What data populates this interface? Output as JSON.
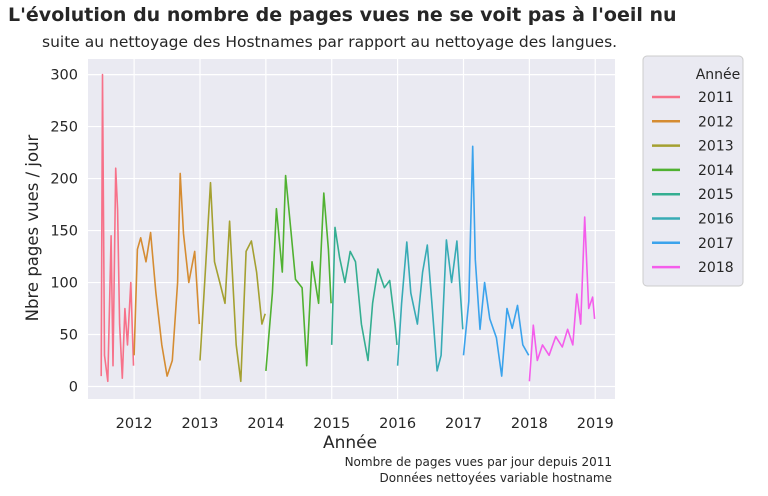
{
  "chart_data": {
    "type": "line",
    "title": "L'évolution du nombre de pages vues ne se voit pas à l'oeil nu",
    "subtitle": "suite au nettoyage des Hostnames par rapport au nettoyage des langues.",
    "xlabel": "Année",
    "ylabel": "Nbre pages vues / jour",
    "xlim": [
      2011.3,
      2019.3
    ],
    "ylim": [
      -12,
      315
    ],
    "x_ticks": [
      "2012",
      "2013",
      "2014",
      "2015",
      "2016",
      "2017",
      "2018",
      "2019"
    ],
    "x_tick_values": [
      2012,
      2013,
      2014,
      2015,
      2016,
      2017,
      2018,
      2019
    ],
    "y_ticks": [
      0,
      50,
      100,
      150,
      200,
      250,
      300
    ],
    "grid": true,
    "legend": {
      "title": "Année",
      "placement": "outside-right"
    },
    "series": [
      {
        "name": "2011",
        "color": "#f77189",
        "x": [
          2011.5,
          2011.52,
          2011.55,
          2011.6,
          2011.65,
          2011.68,
          2011.72,
          2011.75,
          2011.78,
          2011.82,
          2011.86,
          2011.9,
          2011.95,
          2011.99
        ],
        "y": [
          10,
          300,
          30,
          5,
          145,
          20,
          210,
          170,
          60,
          8,
          75,
          40,
          100,
          20
        ]
      },
      {
        "name": "2012",
        "color": "#d58c32",
        "x": [
          2012.0,
          2012.05,
          2012.1,
          2012.18,
          2012.25,
          2012.33,
          2012.42,
          2012.5,
          2012.58,
          2012.66,
          2012.7,
          2012.75,
          2012.83,
          2012.92,
          2012.99
        ],
        "y": [
          30,
          132,
          143,
          120,
          148,
          90,
          40,
          10,
          25,
          100,
          205,
          147,
          100,
          130,
          60
        ]
      },
      {
        "name": "2013",
        "color": "#a4a031",
        "x": [
          2013.0,
          2013.08,
          2013.16,
          2013.22,
          2013.3,
          2013.38,
          2013.45,
          2013.55,
          2013.62,
          2013.7,
          2013.78,
          2013.86,
          2013.94,
          2013.99
        ],
        "y": [
          25,
          110,
          196,
          120,
          100,
          80,
          159,
          40,
          5,
          130,
          140,
          110,
          60,
          70
        ]
      },
      {
        "name": "2014",
        "color": "#50b131",
        "x": [
          2014.0,
          2014.1,
          2014.16,
          2014.25,
          2014.3,
          2014.38,
          2014.45,
          2014.55,
          2014.62,
          2014.7,
          2014.8,
          2014.88,
          2014.95,
          2014.99
        ],
        "y": [
          15,
          90,
          171,
          110,
          203,
          150,
          103,
          95,
          20,
          120,
          80,
          186,
          132,
          80
        ]
      },
      {
        "name": "2015",
        "color": "#34ae91",
        "x": [
          2015.0,
          2015.05,
          2015.12,
          2015.2,
          2015.28,
          2015.36,
          2015.45,
          2015.55,
          2015.62,
          2015.7,
          2015.8,
          2015.88,
          2015.96,
          2015.99
        ],
        "y": [
          40,
          153,
          124,
          100,
          130,
          120,
          60,
          25,
          80,
          113,
          95,
          102,
          60,
          40
        ]
      },
      {
        "name": "2016",
        "color": "#37abb5",
        "x": [
          2016.0,
          2016.06,
          2016.14,
          2016.2,
          2016.3,
          2016.38,
          2016.45,
          2016.52,
          2016.6,
          2016.66,
          2016.74,
          2016.82,
          2016.9,
          2016.99
        ],
        "y": [
          20,
          80,
          139,
          90,
          60,
          110,
          136,
          80,
          15,
          30,
          141,
          100,
          140,
          55
        ]
      },
      {
        "name": "2017",
        "color": "#3ba3ec",
        "x": [
          2017.0,
          2017.08,
          2017.14,
          2017.18,
          2017.25,
          2017.32,
          2017.4,
          2017.5,
          2017.58,
          2017.66,
          2017.74,
          2017.82,
          2017.9,
          2017.99
        ],
        "y": [
          30,
          82,
          231,
          122,
          55,
          100,
          65,
          47,
          10,
          75,
          56,
          78,
          40,
          30
        ]
      },
      {
        "name": "2018",
        "color": "#f45deb",
        "x": [
          2018.0,
          2018.06,
          2018.12,
          2018.2,
          2018.3,
          2018.4,
          2018.5,
          2018.58,
          2018.66,
          2018.72,
          2018.78,
          2018.84,
          2018.9,
          2018.96,
          2018.99
        ],
        "y": [
          5,
          59,
          25,
          40,
          30,
          48,
          38,
          55,
          40,
          89,
          60,
          163,
          75,
          86,
          65
        ]
      }
    ]
  },
  "caption": {
    "line1": "Nombre de pages vues par jour depuis 2011",
    "line2": "Données nettoyées variable hostname"
  }
}
